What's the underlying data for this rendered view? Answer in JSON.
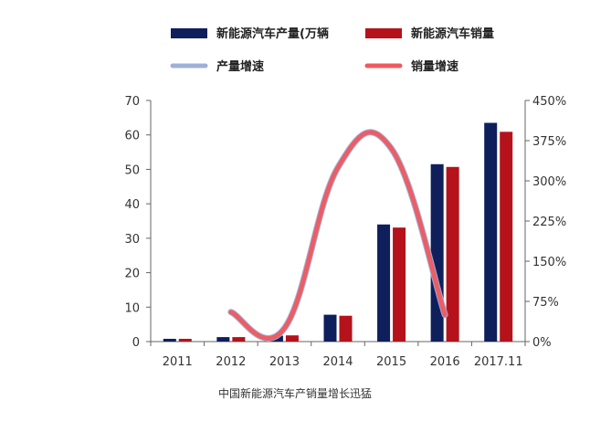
{
  "chart_data": {
    "type": "bar",
    "categories": [
      "2011",
      "2012",
      "2013",
      "2014",
      "2015",
      "2016",
      "2017.11"
    ],
    "series": [
      {
        "name": "新能源汽车产量(万辆",
        "type": "bar",
        "axis": "left",
        "color": "#0f1f5c",
        "values": [
          0.8,
          1.3,
          1.7,
          7.8,
          34.0,
          51.5,
          63.5
        ]
      },
      {
        "name": "新能源汽车销量",
        "type": "bar",
        "axis": "left",
        "color": "#b5121b",
        "values": [
          0.8,
          1.3,
          1.8,
          7.5,
          33.1,
          50.7,
          60.9
        ]
      },
      {
        "name": "产量增速",
        "type": "line",
        "axis": "right",
        "color": "#9fb0d8",
        "values": [
          null,
          55,
          25,
          325,
          360,
          50,
          null
        ]
      },
      {
        "name": "销量增速",
        "type": "line",
        "axis": "right",
        "color": "#ef5a5f",
        "values": [
          null,
          55,
          25,
          325,
          360,
          50,
          null
        ]
      }
    ],
    "y_left": {
      "min": 0,
      "max": 70,
      "ticks": [
        "0",
        "10",
        "20",
        "30",
        "40",
        "50",
        "60",
        "70"
      ]
    },
    "y_right": {
      "min": 0,
      "max": 450,
      "ticks": [
        "0%",
        "75%",
        "150%",
        "225%",
        "300%",
        "375%",
        "450%"
      ]
    },
    "legend": {
      "placement": "top"
    },
    "grid": false,
    "caption": "中国新能源汽车产销量增长迅猛"
  }
}
